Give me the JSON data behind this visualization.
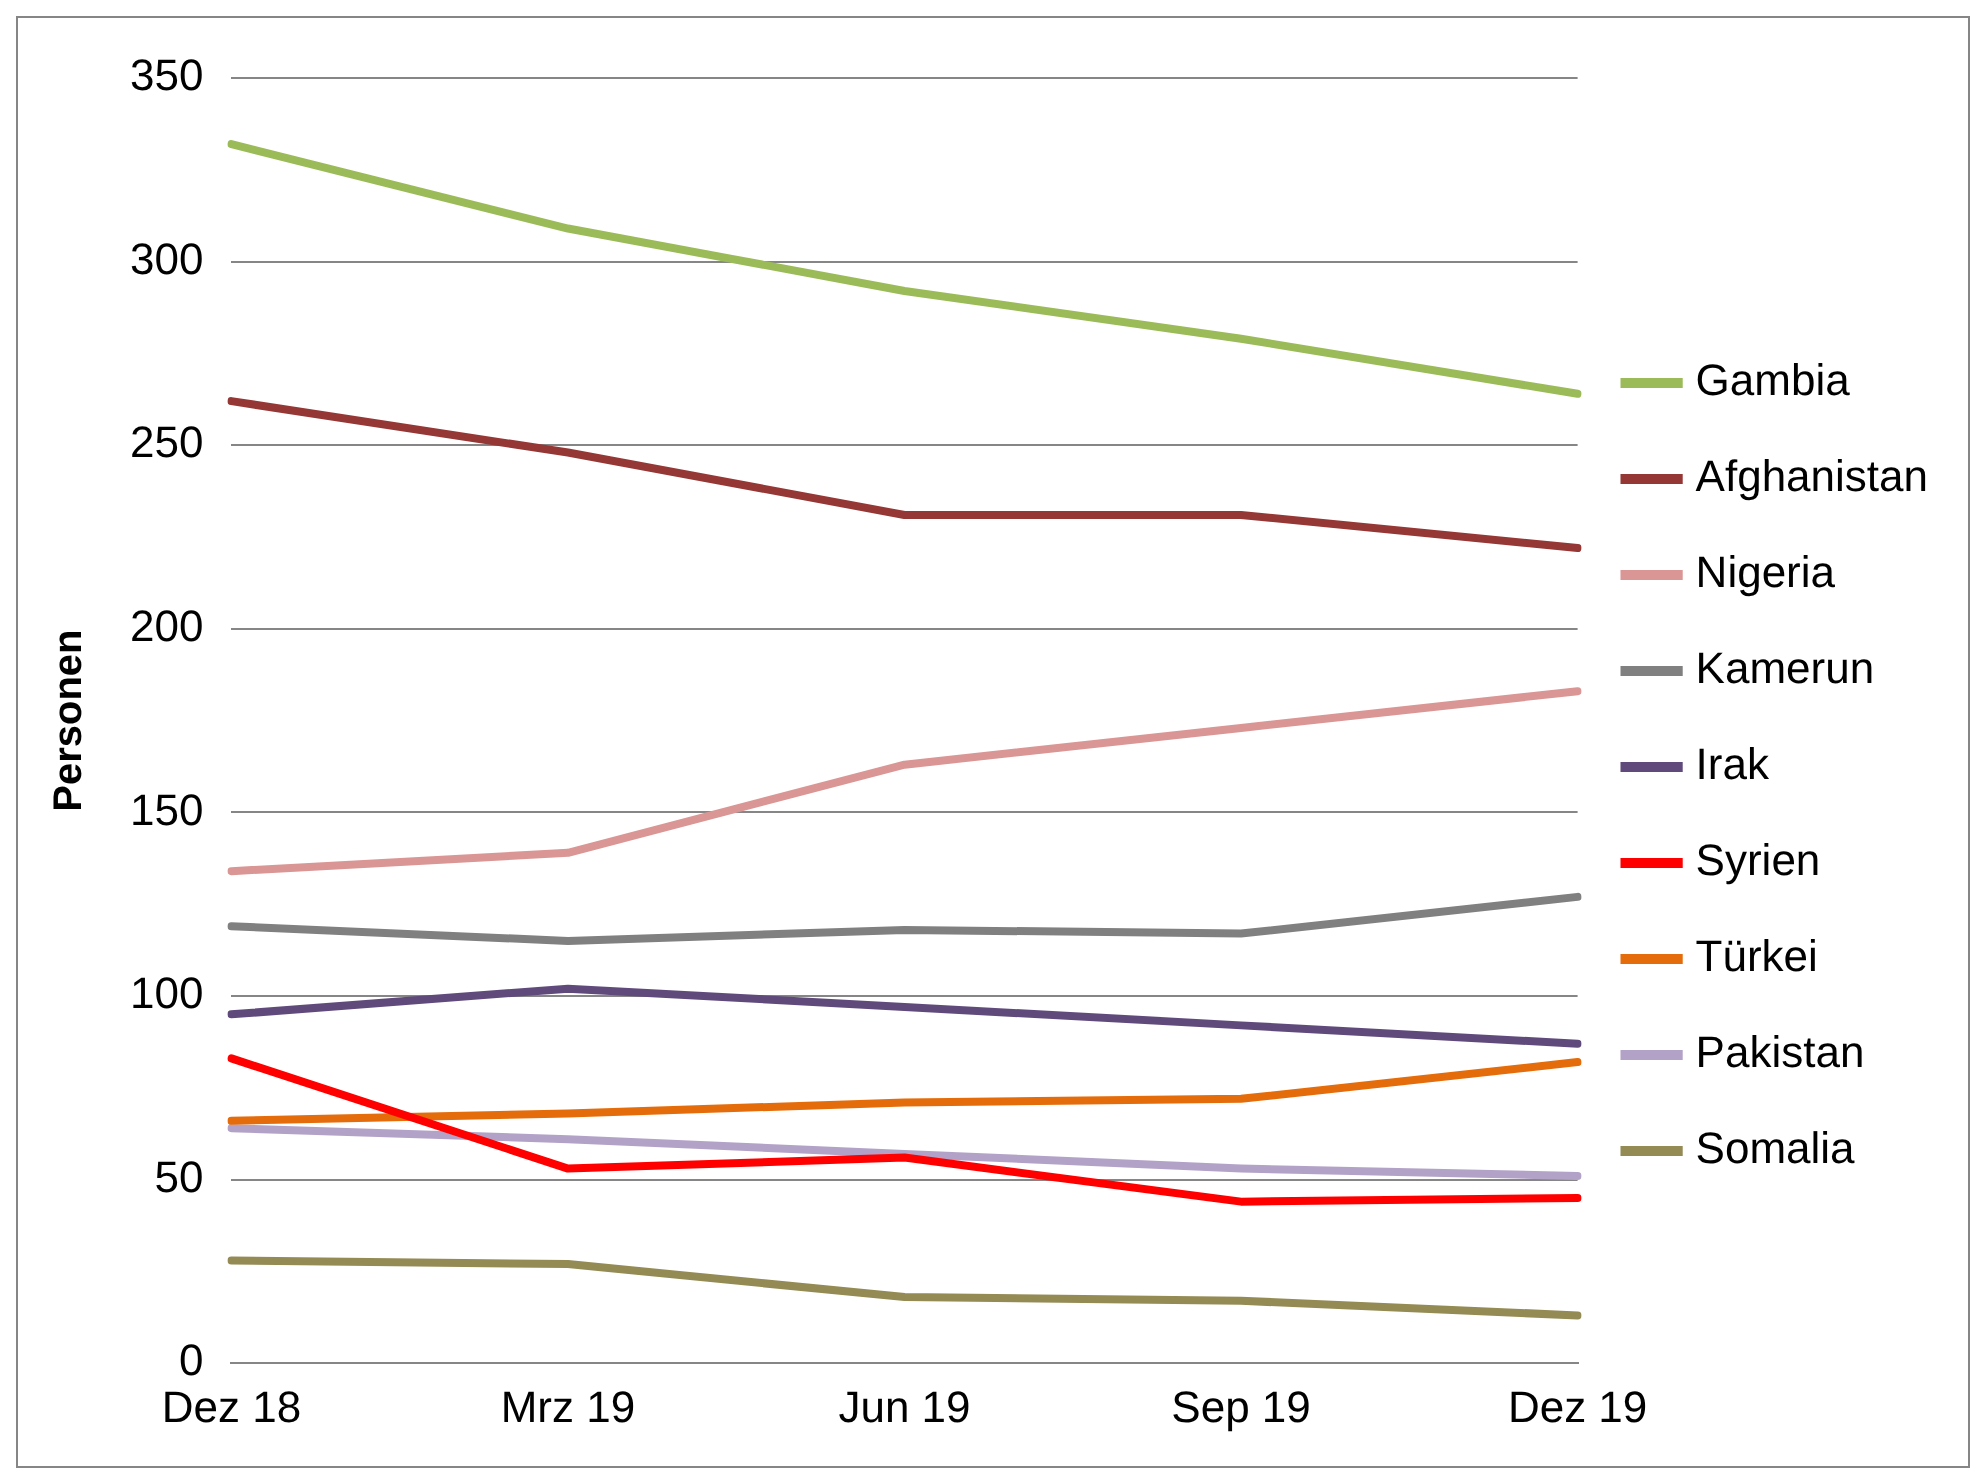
{
  "chart_data": {
    "type": "line",
    "ylabel": "Personen",
    "categories": [
      "Dez 18",
      "Mrz 19",
      "Jun 19",
      "Sep 19",
      "Dez 19"
    ],
    "ylim": [
      0,
      350
    ],
    "yticks": [
      0,
      50,
      100,
      150,
      200,
      250,
      300,
      350
    ],
    "grid": "y",
    "legend": "right",
    "marker": "none",
    "line_style": "solid",
    "series": [
      {
        "name": "Gambia",
        "color": "#9bbb59",
        "values": [
          332,
          309,
          292,
          279,
          264
        ]
      },
      {
        "name": "Afghanistan",
        "color": "#953735",
        "values": [
          262,
          248,
          231,
          231,
          222
        ]
      },
      {
        "name": "Nigeria",
        "color": "#d99694",
        "values": [
          134,
          139,
          163,
          173,
          183
        ]
      },
      {
        "name": "Kamerun",
        "color": "#808080",
        "values": [
          119,
          115,
          118,
          117,
          127
        ]
      },
      {
        "name": "Irak",
        "color": "#604a7b",
        "values": [
          95,
          102,
          97,
          92,
          87
        ]
      },
      {
        "name": "Syrien",
        "color": "#ff0000",
        "values": [
          83,
          53,
          56,
          44,
          45
        ]
      },
      {
        "name": "Türkei",
        "color": "#e46c0a",
        "values": [
          66,
          68,
          71,
          72,
          82
        ]
      },
      {
        "name": "Pakistan",
        "color": "#b3a2c7",
        "values": [
          64,
          61,
          57,
          53,
          51
        ]
      },
      {
        "name": "Somalia",
        "color": "#948a54",
        "values": [
          28,
          27,
          18,
          17,
          13
        ]
      }
    ]
  }
}
